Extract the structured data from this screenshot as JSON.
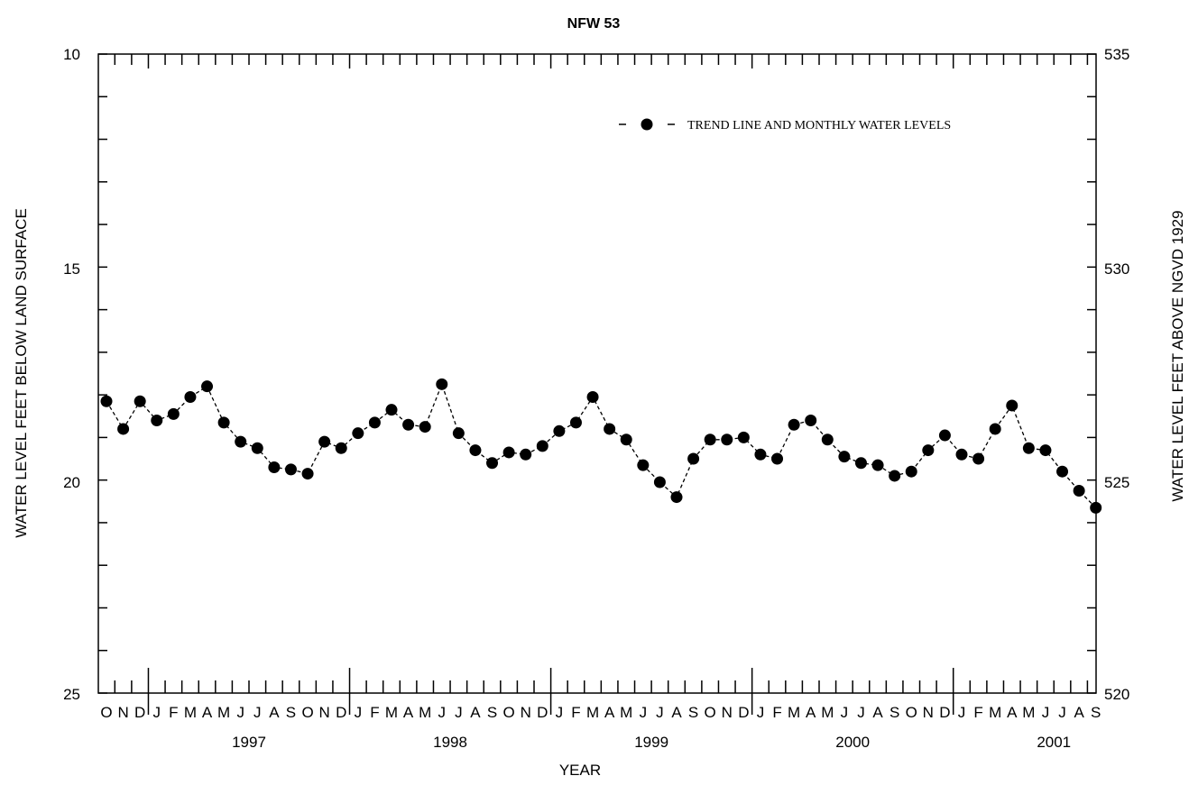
{
  "chart_data": {
    "type": "line",
    "title": "NFW 53",
    "xlabel": "YEAR",
    "ylabel_left": "WATER LEVEL FEET BELOW LAND SURFACE",
    "ylabel_right": "WATER LEVEL FEET ABOVE NGVD 1929",
    "ylim_left": [
      10,
      25
    ],
    "left_axis_inverted": true,
    "ylim_right": [
      520,
      535
    ],
    "left_ticks": [
      "10",
      "15",
      "20",
      "25"
    ],
    "right_ticks": [
      "535",
      "530",
      "525",
      "520"
    ],
    "month_labels": [
      "O",
      "N",
      "D",
      "J",
      "F",
      "M",
      "A",
      "M",
      "J",
      "J",
      "A",
      "S",
      "O",
      "N",
      "D",
      "J",
      "F",
      "M",
      "A",
      "M",
      "J",
      "J",
      "A",
      "S",
      "O",
      "N",
      "D",
      "J",
      "F",
      "M",
      "A",
      "M",
      "J",
      "J",
      "A",
      "S",
      "O",
      "N",
      "D",
      "J",
      "F",
      "M",
      "A",
      "M",
      "J",
      "J",
      "A",
      "S",
      "O",
      "N",
      "D",
      "J",
      "F",
      "M",
      "A",
      "M",
      "J",
      "J",
      "A",
      "S"
    ],
    "year_labels": [
      "1997",
      "1998",
      "1999",
      "2000",
      "2001"
    ],
    "legend": {
      "label": "TREND LINE AND MONTHLY WATER LEVELS",
      "position": "top-right"
    },
    "grid": false,
    "series": [
      {
        "name": "TREND LINE AND MONTHLY WATER LEVELS",
        "x": [
          "1996-10",
          "1996-11",
          "1996-12",
          "1997-01",
          "1997-02",
          "1997-03",
          "1997-04",
          "1997-05",
          "1997-06",
          "1997-07",
          "1997-08",
          "1997-09",
          "1997-10",
          "1997-11",
          "1997-12",
          "1998-01",
          "1998-02",
          "1998-03",
          "1998-04",
          "1998-05",
          "1998-06",
          "1998-07",
          "1998-08",
          "1998-09",
          "1998-10",
          "1998-11",
          "1998-12",
          "1999-01",
          "1999-02",
          "1999-03",
          "1999-04",
          "1999-05",
          "1999-06",
          "1999-07",
          "1999-08",
          "1999-09",
          "1999-10",
          "1999-11",
          "1999-12",
          "2000-01",
          "2000-02",
          "2000-03",
          "2000-04",
          "2000-05",
          "2000-06",
          "2000-07",
          "2000-08",
          "2000-09",
          "2000-10",
          "2000-11",
          "2000-12",
          "2001-01",
          "2001-02",
          "2001-03",
          "2001-04",
          "2001-05",
          "2001-06",
          "2001-07",
          "2001-08",
          "2001-09"
        ],
        "values": [
          18.15,
          18.8,
          18.15,
          18.6,
          18.45,
          18.05,
          17.8,
          18.65,
          19.1,
          19.25,
          19.7,
          19.75,
          19.85,
          19.1,
          19.25,
          18.9,
          18.65,
          18.35,
          18.7,
          18.75,
          17.75,
          18.9,
          19.3,
          19.6,
          19.35,
          19.4,
          19.2,
          18.85,
          18.65,
          18.05,
          18.8,
          19.05,
          19.65,
          20.05,
          20.4,
          19.5,
          19.05,
          19.05,
          19.0,
          19.4,
          19.5,
          18.7,
          18.6,
          19.05,
          19.45,
          19.6,
          19.65,
          19.9,
          19.8,
          19.3,
          18.95,
          19.4,
          19.5,
          18.8,
          18.25,
          19.25,
          19.3,
          19.8,
          20.25,
          20.65
        ]
      }
    ]
  }
}
